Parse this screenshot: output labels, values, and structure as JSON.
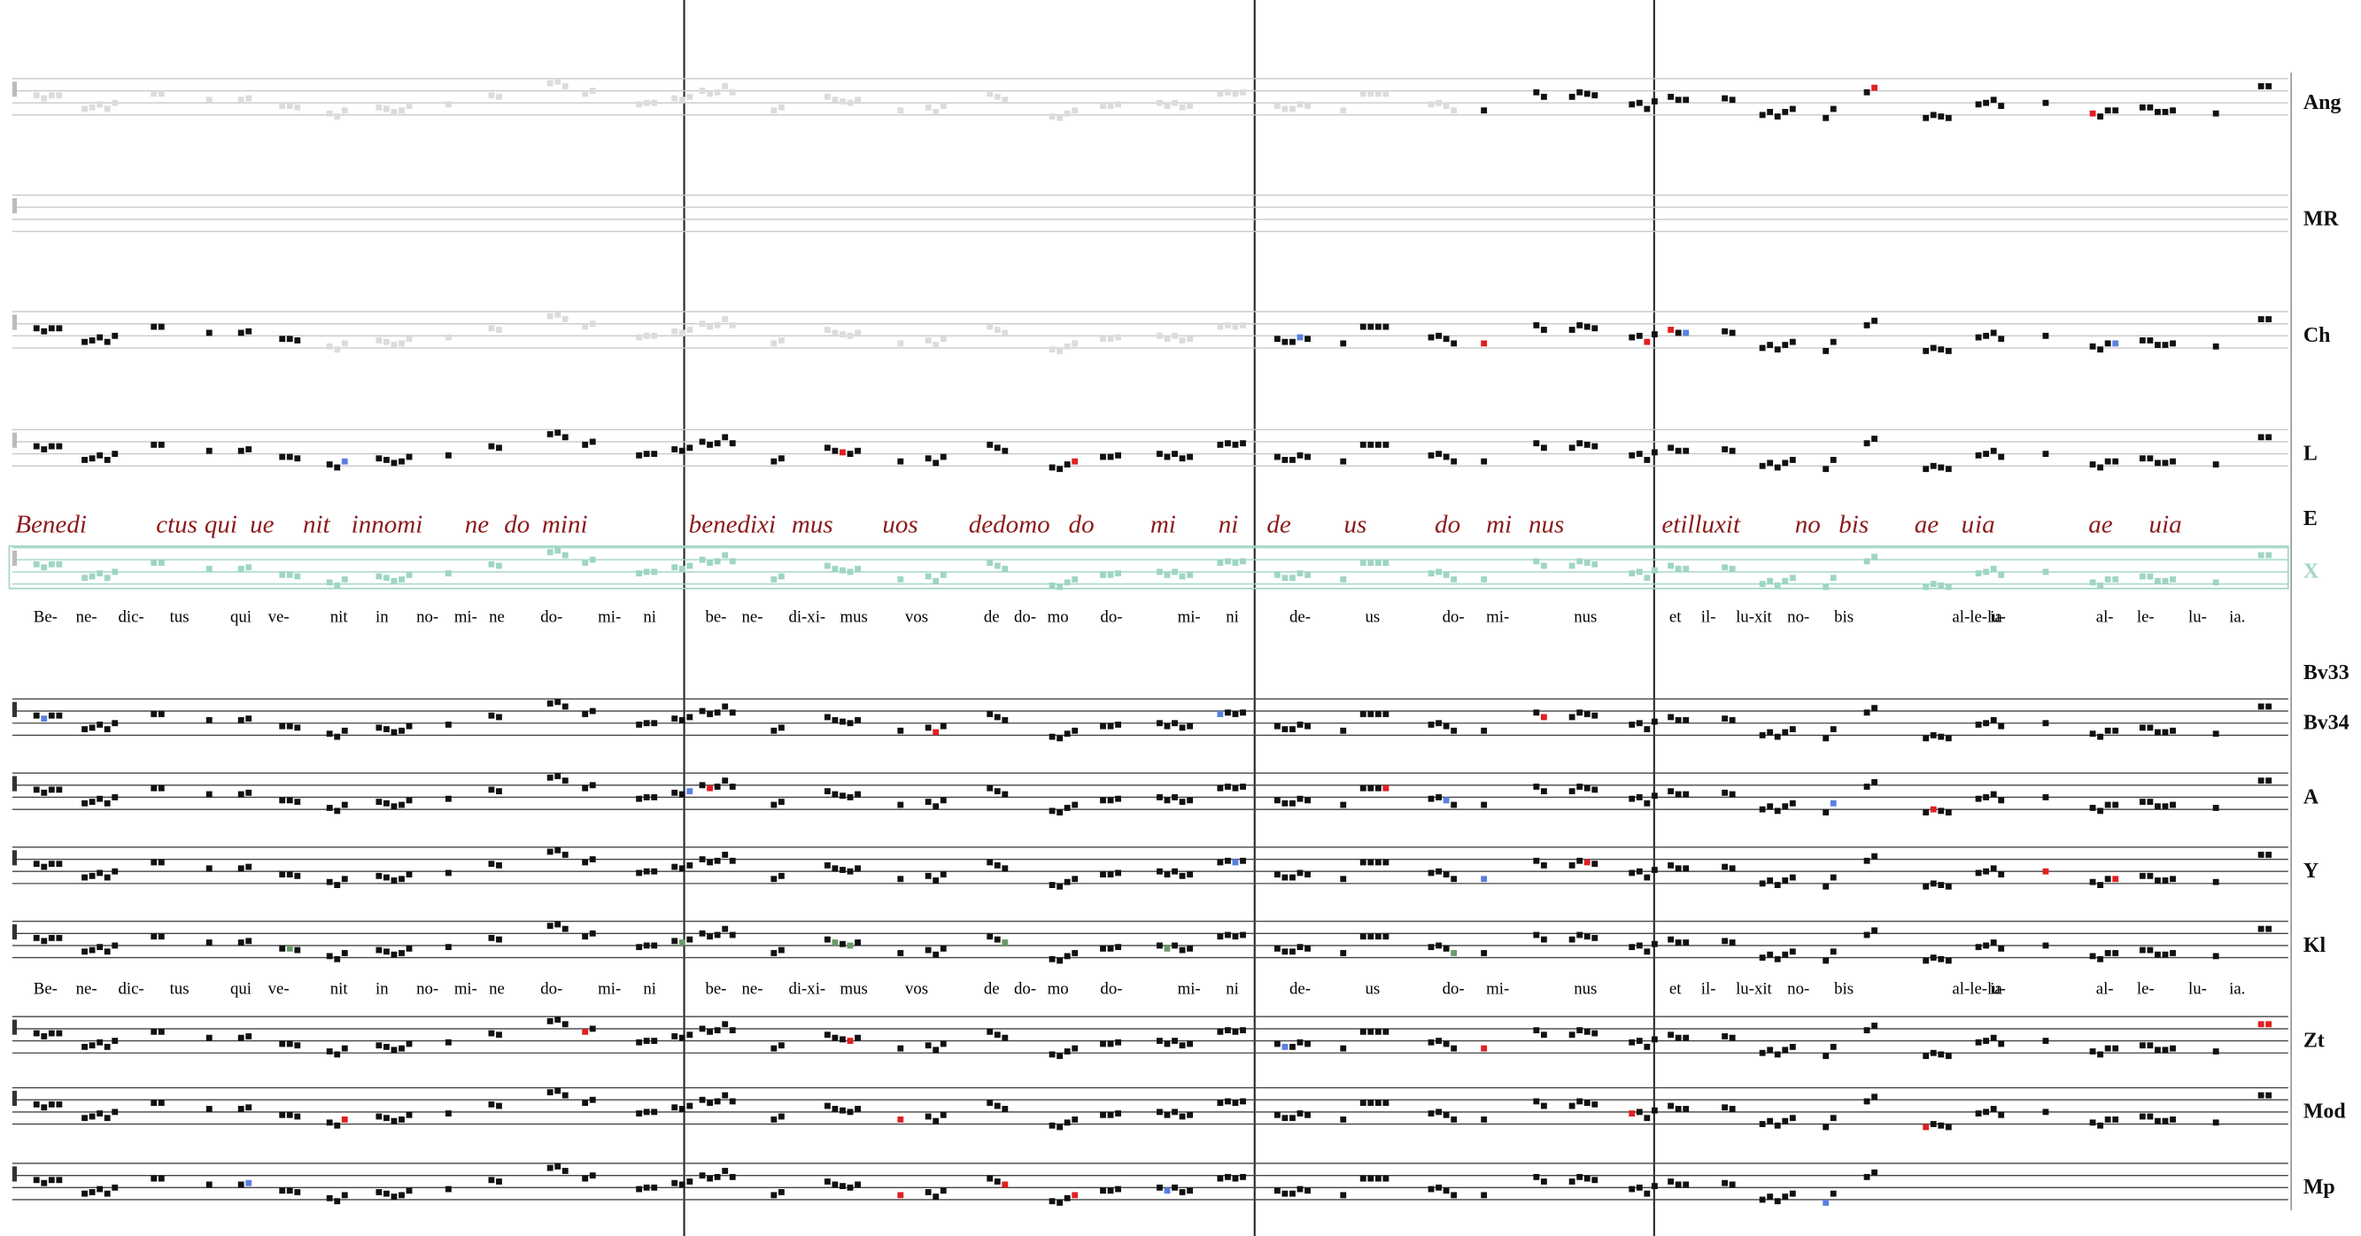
{
  "staves": [
    {
      "label": "Ang"
    },
    {
      "label": "MR"
    },
    {
      "label": "Ch"
    },
    {
      "label": "L"
    },
    {
      "label": "E"
    },
    {
      "label": "X"
    },
    {
      "label": "Bv33"
    },
    {
      "label": "Bv34"
    },
    {
      "label": "A"
    },
    {
      "label": "Y"
    },
    {
      "label": "Kl"
    },
    {
      "label": "Zt"
    },
    {
      "label": "Mod"
    },
    {
      "label": "Mp"
    }
  ],
  "lyrics": [
    "Be-",
    "ne-",
    "dic-",
    "tus",
    "qui",
    "ve-",
    "nit",
    "in",
    "no-",
    "mi-",
    "ne",
    "do-",
    "mi-",
    "ni",
    "be-",
    "ne-",
    "di-xi-",
    "mus",
    "vos",
    "de",
    "do-",
    "mo",
    "do-",
    "mi-",
    "ni",
    "de-",
    "us",
    "do-",
    "mi-",
    "nus",
    "et",
    "il-",
    "lu-xit",
    "no-",
    "bis",
    "al-le-lu-",
    "ia",
    "al-",
    "le-",
    "lu-",
    "ia."
  ],
  "manuscript": [
    "Benedi",
    "ctus",
    "qui",
    "ue",
    "nit",
    "innomi",
    "ne",
    "do",
    "mini",
    "benedixi",
    "mus",
    "uos",
    "dedomo",
    "do",
    "mi",
    "ni",
    "de",
    "us",
    "do",
    "mi",
    "nus",
    "etilluxit",
    "no",
    "bis",
    "ae",
    "u",
    "ia",
    "ae",
    "uia"
  ]
}
